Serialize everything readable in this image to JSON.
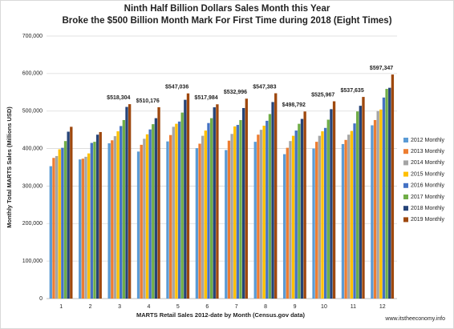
{
  "chart_data": {
    "type": "bar",
    "title": "Ninth Half Billion Dollars Sales Month this Year",
    "subtitle": "Broke the $500 Billion Month Mark For First Time during 2018 (Eight Times)",
    "x_label": "MARTS Retail Sales 2012-date by Month (Census.gov data)",
    "y_label": "Monthly Total MARTS Sales (Millions USD)",
    "source": "www.itstheeconomy.info",
    "categories": [
      "1",
      "2",
      "3",
      "4",
      "5",
      "6",
      "7",
      "8",
      "9",
      "10",
      "11",
      "12"
    ],
    "series": [
      {
        "name": "2012 Monthly",
        "color": "#5b9bd5",
        "values": [
          353000,
          371000,
          414000,
          392000,
          419000,
          401000,
          396000,
          418000,
          385000,
          400000,
          412000,
          462000
        ]
      },
      {
        "name": "2013 Monthly",
        "color": "#ed7d31",
        "values": [
          375000,
          373000,
          422000,
          410000,
          436000,
          413000,
          421000,
          437000,
          402000,
          418000,
          423000,
          476000
        ]
      },
      {
        "name": "2014 Monthly",
        "color": "#a5a5a5",
        "values": [
          380000,
          378000,
          433000,
          426000,
          458000,
          434000,
          439000,
          450000,
          420000,
          434000,
          437000,
          500000
        ]
      },
      {
        "name": "2015 Monthly",
        "color": "#ffc000",
        "values": [
          398000,
          387000,
          446000,
          438000,
          466000,
          448000,
          459000,
          461000,
          434000,
          446000,
          447000,
          504000
        ]
      },
      {
        "name": "2016 Monthly",
        "color": "#4472c4",
        "values": [
          402000,
          415000,
          460000,
          451000,
          472000,
          468000,
          463000,
          474000,
          448000,
          455000,
          467000,
          536000
        ]
      },
      {
        "name": "2017 Monthly",
        "color": "#70ad47",
        "values": [
          420000,
          418000,
          476000,
          465000,
          496000,
          481000,
          476000,
          492000,
          466000,
          477000,
          499000,
          559000
        ]
      },
      {
        "name": "2018 Monthly",
        "color": "#264478",
        "values": [
          445000,
          437000,
          511000,
          481000,
          530000,
          510000,
          508000,
          524000,
          479000,
          505000,
          514000,
          562000
        ]
      },
      {
        "name": "2019 Monthly",
        "color": "#9e480e",
        "values": [
          458000,
          444000,
          518304,
          510176,
          547036,
          517984,
          532996,
          547383,
          498792,
          525967,
          537635,
          597347
        ],
        "value_labels": [
          null,
          null,
          "$518,304",
          "$510,176",
          "$547,036",
          "$517,984",
          "$532,996",
          "$547,383",
          "$498,792",
          "$525,967",
          "$537,635",
          "$597,347"
        ]
      }
    ],
    "ylim": [
      0,
      700000
    ],
    "yticks": [
      0,
      {
        "value": 100000,
        "label": "100,000"
      },
      {
        "value": 200000,
        "label": "200,000"
      },
      {
        "value": 300000,
        "label": "300,000"
      },
      {
        "value": 400000,
        "label": "400,000"
      },
      {
        "value": 500000,
        "label": "500,000"
      },
      {
        "value": 600000,
        "label": "600,000"
      },
      {
        "value": 700000,
        "label": "700,000"
      }
    ],
    "grid": true,
    "legend": "right"
  }
}
